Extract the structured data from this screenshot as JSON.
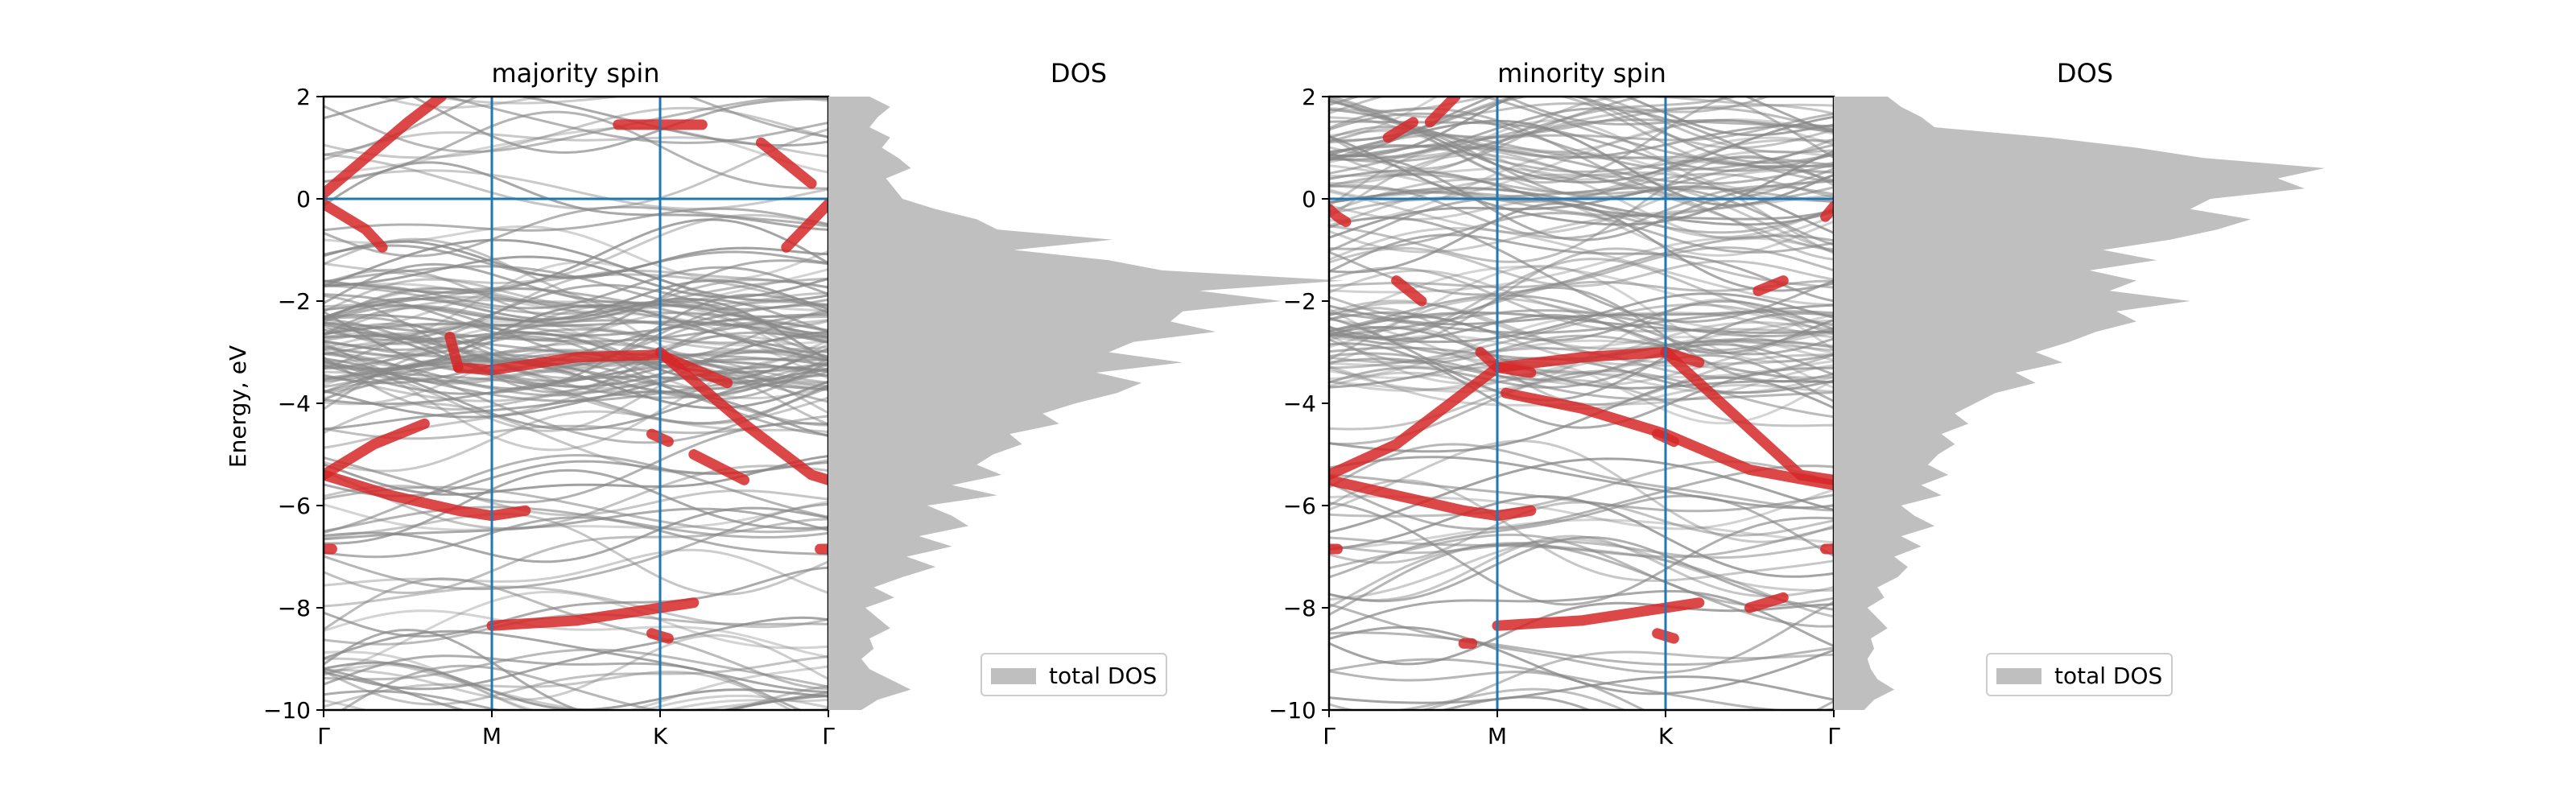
{
  "chart_data": [
    {
      "type": "line",
      "title": "majority spin",
      "xlabel": "",
      "ylabel": "Energy, eV",
      "ylim": [
        -10,
        2
      ],
      "yticks": [
        2,
        0,
        -2,
        -4,
        -6,
        -8,
        -10
      ],
      "ytick_labels": [
        "2",
        "0",
        "−2",
        "−4",
        "−6",
        "−8",
        "−10"
      ],
      "kpoint_labels": [
        "Γ",
        "M",
        "K",
        "Γ"
      ],
      "kpoint_positions": [
        0,
        1,
        2,
        3
      ],
      "fermi_level": 0,
      "band_color": "#888888",
      "highlight_color": "#d62728",
      "line_color": "#1f77b4",
      "highlighted_bands": [
        {
          "x": [
            0,
            0.5,
            0.7
          ],
          "y": [
            0.1,
            1.5,
            2.0
          ]
        },
        {
          "x": [
            0,
            0.25,
            0.35
          ],
          "y": [
            -0.1,
            -0.6,
            -0.95
          ]
        },
        {
          "x": [
            1.75,
            2.0,
            2.25
          ],
          "y": [
            1.45,
            1.45,
            1.45
          ]
        },
        {
          "x": [
            2.6,
            2.9
          ],
          "y": [
            1.1,
            0.3
          ]
        },
        {
          "x": [
            2.75,
            3.0
          ],
          "y": [
            -0.95,
            -0.1
          ]
        },
        {
          "x": [
            0.8,
            1.0,
            1.5,
            2.0,
            2.4
          ],
          "y": [
            -3.3,
            -3.35,
            -3.1,
            -3.05,
            -3.6
          ]
        },
        {
          "x": [
            0.75,
            0.8
          ],
          "y": [
            -2.7,
            -3.3
          ]
        },
        {
          "x": [
            2.0,
            2.5,
            2.9,
            3.0
          ],
          "y": [
            -3.0,
            -4.4,
            -5.4,
            -5.5
          ]
        },
        {
          "x": [
            0,
            0.3,
            0.6
          ],
          "y": [
            -5.4,
            -4.8,
            -4.4
          ]
        },
        {
          "x": [
            0,
            0.4,
            0.8,
            1.0,
            1.2
          ],
          "y": [
            -5.4,
            -5.8,
            -6.1,
            -6.2,
            -6.1
          ]
        },
        {
          "x": [
            1.0,
            1.5,
            1.8,
            2.2
          ],
          "y": [
            -8.35,
            -8.25,
            -8.1,
            -7.9
          ]
        },
        {
          "x": [
            2.2,
            2.5
          ],
          "y": [
            -5.0,
            -5.5
          ]
        },
        {
          "x": [
            1.95,
            2.05
          ],
          "y": [
            -4.6,
            -4.75
          ]
        },
        {
          "x": [
            1.95,
            2.05
          ],
          "y": [
            -8.5,
            -8.6
          ]
        },
        {
          "x": [
            0,
            0.05
          ],
          "y": [
            -6.85,
            -6.85
          ]
        },
        {
          "x": [
            2.95,
            3.0
          ],
          "y": [
            -6.85,
            -6.85
          ]
        }
      ]
    },
    {
      "type": "area",
      "title": "DOS",
      "legend": [
        "total DOS"
      ],
      "legend_position": "lower-right",
      "fill_color": "#bfbfbf",
      "ylim": [
        -10,
        2
      ],
      "energy": [
        -10.0,
        -9.8,
        -9.6,
        -9.4,
        -9.2,
        -9.0,
        -8.8,
        -8.6,
        -8.4,
        -8.2,
        -8.0,
        -7.8,
        -7.6,
        -7.4,
        -7.2,
        -7.0,
        -6.8,
        -6.6,
        -6.4,
        -6.2,
        -6.0,
        -5.8,
        -5.6,
        -5.4,
        -5.2,
        -5.0,
        -4.8,
        -4.6,
        -4.4,
        -4.2,
        -4.0,
        -3.8,
        -3.6,
        -3.4,
        -3.2,
        -3.0,
        -2.8,
        -2.6,
        -2.4,
        -2.2,
        -2.0,
        -1.8,
        -1.6,
        -1.4,
        -1.2,
        -1.0,
        -0.8,
        -0.6,
        -0.4,
        -0.2,
        0.0,
        0.2,
        0.4,
        0.6,
        0.8,
        1.0,
        1.2,
        1.4,
        1.6,
        1.8,
        2.0
      ],
      "dos": [
        0.8,
        1.2,
        2.0,
        1.5,
        1.0,
        0.8,
        1.1,
        1.0,
        1.5,
        1.2,
        0.9,
        1.6,
        1.1,
        1.8,
        2.6,
        1.9,
        3.0,
        2.2,
        3.4,
        3.0,
        2.4,
        4.1,
        3.0,
        4.2,
        3.6,
        4.0,
        4.7,
        4.4,
        5.6,
        5.2,
        6.0,
        7.0,
        7.6,
        6.5,
        8.6,
        6.8,
        7.4,
        9.4,
        8.3,
        8.6,
        11.0,
        9.0,
        12.5,
        8.1,
        6.8,
        4.5,
        6.9,
        4.1,
        3.6,
        2.6,
        1.8,
        1.6,
        1.4,
        2.0,
        1.7,
        1.3,
        1.5,
        1.0,
        1.2,
        1.5,
        1.0
      ]
    },
    {
      "type": "line",
      "title": "minority spin",
      "xlabel": "",
      "ylabel": "",
      "ylim": [
        -10,
        2
      ],
      "yticks": [
        2,
        0,
        -2,
        -4,
        -6,
        -8,
        -10
      ],
      "ytick_labels": [
        "2",
        "0",
        "−2",
        "−4",
        "−6",
        "−8",
        "−10"
      ],
      "kpoint_labels": [
        "Γ",
        "M",
        "K",
        "Γ"
      ],
      "kpoint_positions": [
        0,
        1,
        2,
        3
      ],
      "fermi_level": 0,
      "band_color": "#888888",
      "highlight_color": "#d62728",
      "line_color": "#1f77b4",
      "highlighted_bands": [
        {
          "x": [
            0.6,
            0.75
          ],
          "y": [
            1.5,
            2.0
          ]
        },
        {
          "x": [
            0.35,
            0.5
          ],
          "y": [
            1.2,
            1.5
          ]
        },
        {
          "x": [
            0,
            0.05,
            0.1
          ],
          "y": [
            -0.2,
            -0.35,
            -0.45
          ]
        },
        {
          "x": [
            2.95,
            3.0
          ],
          "y": [
            -0.35,
            -0.15
          ]
        },
        {
          "x": [
            0.4,
            0.55
          ],
          "y": [
            -1.6,
            -2.0
          ]
        },
        {
          "x": [
            2.55,
            2.7
          ],
          "y": [
            -1.8,
            -1.6
          ]
        },
        {
          "x": [
            0,
            0.4,
            0.8,
            1.0,
            1.5,
            2.0,
            2.2
          ],
          "y": [
            -5.4,
            -4.8,
            -3.8,
            -3.3,
            -3.1,
            -3.0,
            -3.2
          ]
        },
        {
          "x": [
            0.9,
            1.0,
            1.2
          ],
          "y": [
            -3.0,
            -3.3,
            -3.4
          ]
        },
        {
          "x": [
            2.0,
            2.4,
            2.8,
            3.0
          ],
          "y": [
            -3.0,
            -4.2,
            -5.4,
            -5.5
          ]
        },
        {
          "x": [
            1.05,
            1.5,
            2.0,
            2.5,
            3.0
          ],
          "y": [
            -3.8,
            -4.1,
            -4.6,
            -5.3,
            -5.6
          ]
        },
        {
          "x": [
            0,
            0.4,
            0.8,
            1.0,
            1.2
          ],
          "y": [
            -5.5,
            -5.8,
            -6.1,
            -6.2,
            -6.1
          ]
        },
        {
          "x": [
            1.0,
            1.5,
            1.8,
            2.2
          ],
          "y": [
            -8.35,
            -8.25,
            -8.1,
            -7.9
          ]
        },
        {
          "x": [
            2.5,
            2.7
          ],
          "y": [
            -8.0,
            -7.8
          ]
        },
        {
          "x": [
            0.8,
            0.85
          ],
          "y": [
            -8.7,
            -8.7
          ]
        },
        {
          "x": [
            1.95,
            2.05
          ],
          "y": [
            -4.6,
            -4.75
          ]
        },
        {
          "x": [
            1.95,
            2.05
          ],
          "y": [
            -8.5,
            -8.6
          ]
        },
        {
          "x": [
            0,
            0.05
          ],
          "y": [
            -6.85,
            -6.85
          ]
        },
        {
          "x": [
            2.95,
            3.0
          ],
          "y": [
            -6.85,
            -6.85
          ]
        }
      ]
    },
    {
      "type": "area",
      "title": "DOS",
      "legend": [
        "total DOS"
      ],
      "legend_position": "lower-right",
      "fill_color": "#bfbfbf",
      "ylim": [
        -10,
        2
      ],
      "energy": [
        -10.0,
        -9.8,
        -9.6,
        -9.4,
        -9.2,
        -9.0,
        -8.8,
        -8.6,
        -8.4,
        -8.2,
        -8.0,
        -7.8,
        -7.6,
        -7.4,
        -7.2,
        -7.0,
        -6.8,
        -6.6,
        -6.4,
        -6.2,
        -6.0,
        -5.8,
        -5.6,
        -5.4,
        -5.2,
        -5.0,
        -4.8,
        -4.6,
        -4.4,
        -4.2,
        -4.0,
        -3.8,
        -3.6,
        -3.4,
        -3.2,
        -3.0,
        -2.8,
        -2.6,
        -2.4,
        -2.2,
        -2.0,
        -1.8,
        -1.6,
        -1.4,
        -1.2,
        -1.0,
        -0.8,
        -0.6,
        -0.4,
        -0.2,
        0.0,
        0.2,
        0.4,
        0.6,
        0.8,
        1.0,
        1.2,
        1.4,
        1.6,
        1.8,
        2.0
      ],
      "dos": [
        0.9,
        1.2,
        1.8,
        1.3,
        1.1,
        1.0,
        1.2,
        1.1,
        1.6,
        1.3,
        1.0,
        1.5,
        1.3,
        1.9,
        2.2,
        1.8,
        2.6,
        2.0,
        3.0,
        2.4,
        2.0,
        3.2,
        2.6,
        3.4,
        2.8,
        3.1,
        3.6,
        3.2,
        4.0,
        3.6,
        4.2,
        4.8,
        6.0,
        5.4,
        6.8,
        6.0,
        7.0,
        7.8,
        9.0,
        8.4,
        10.6,
        8.2,
        9.0,
        7.6,
        9.6,
        8.0,
        10.0,
        11.4,
        12.4,
        10.6,
        11.2,
        14.0,
        13.2,
        14.6,
        11.0,
        9.0,
        6.4,
        3.0,
        2.6,
        2.0,
        1.6
      ]
    }
  ]
}
